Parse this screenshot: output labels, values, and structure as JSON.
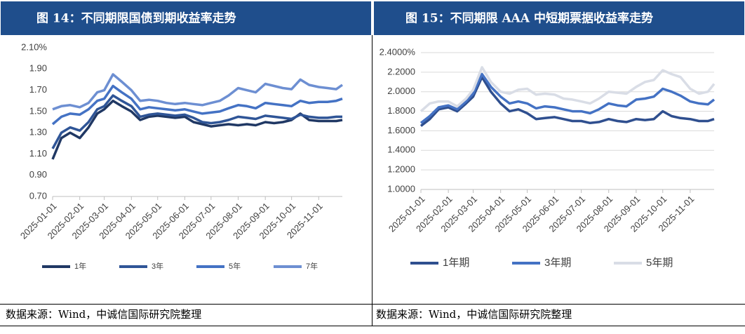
{
  "chart_data": [
    {
      "type": "line",
      "title": "图 14：不同期限国债到期收益率走势",
      "source": "数据来源：Wind，中诚信国际研究院整理",
      "x": [
        "2025-01-01",
        "2025-01-11",
        "2025-01-21",
        "2025-02-01",
        "2025-02-11",
        "2025-02-21",
        "2025-03-01",
        "2025-03-11",
        "2025-03-21",
        "2025-04-01",
        "2025-04-11",
        "2025-04-21",
        "2025-05-01",
        "2025-05-11",
        "2025-05-21",
        "2025-06-01",
        "2025-06-11",
        "2025-06-21",
        "2025-07-01",
        "2025-07-11",
        "2025-07-21",
        "2025-08-01",
        "2025-08-11",
        "2025-08-21",
        "2025-09-01",
        "2025-09-11",
        "2025-09-21",
        "2025-10-01",
        "2025-10-11",
        "2025-10-21",
        "2025-11-01",
        "2025-11-11",
        "2025-11-21",
        "2025-11-28"
      ],
      "xlim": [
        "2025-01-01",
        "2025-11-28"
      ],
      "xticks": [
        "2025-01-01",
        "2025-02-01",
        "2025-03-01",
        "2025-04-01",
        "2025-05-01",
        "2025-06-01",
        "2025-07-01",
        "2025-08-01",
        "2025-09-01",
        "2025-10-01",
        "2025-11-01"
      ],
      "ylim": [
        0.7,
        2.1
      ],
      "yticks": [
        {
          "value": 0.7,
          "label": "0.70"
        },
        {
          "value": 0.9,
          "label": "0.90"
        },
        {
          "value": 1.1,
          "label": "1.10"
        },
        {
          "value": 1.3,
          "label": "1.30"
        },
        {
          "value": 1.5,
          "label": "1.50"
        },
        {
          "value": 1.7,
          "label": "1.70"
        },
        {
          "value": 1.9,
          "label": "1.90"
        },
        {
          "value": 2.1,
          "label": "2.10%"
        }
      ],
      "grid": false,
      "legend": "bottom",
      "series": [
        {
          "name": "1年",
          "color": "#203864",
          "values": [
            1.05,
            1.25,
            1.3,
            1.25,
            1.35,
            1.48,
            1.52,
            1.6,
            1.55,
            1.5,
            1.42,
            1.45,
            1.46,
            1.45,
            1.44,
            1.45,
            1.4,
            1.38,
            1.36,
            1.37,
            1.38,
            1.37,
            1.38,
            1.37,
            1.4,
            1.39,
            1.4,
            1.42,
            1.48,
            1.42,
            1.41,
            1.41,
            1.41,
            1.42
          ]
        },
        {
          "name": "3年",
          "color": "#2f5597",
          "values": [
            1.15,
            1.3,
            1.35,
            1.32,
            1.4,
            1.52,
            1.55,
            1.65,
            1.6,
            1.55,
            1.45,
            1.47,
            1.48,
            1.47,
            1.46,
            1.47,
            1.44,
            1.4,
            1.39,
            1.4,
            1.42,
            1.45,
            1.44,
            1.43,
            1.46,
            1.45,
            1.44,
            1.43,
            1.47,
            1.45,
            1.44,
            1.44,
            1.45,
            1.45
          ]
        },
        {
          "name": "5年",
          "color": "#4472c4",
          "values": [
            1.38,
            1.45,
            1.48,
            1.47,
            1.52,
            1.6,
            1.62,
            1.74,
            1.68,
            1.62,
            1.52,
            1.54,
            1.53,
            1.52,
            1.51,
            1.52,
            1.5,
            1.48,
            1.49,
            1.5,
            1.53,
            1.56,
            1.55,
            1.53,
            1.58,
            1.57,
            1.56,
            1.55,
            1.6,
            1.58,
            1.59,
            1.59,
            1.6,
            1.62
          ]
        },
        {
          "name": "7年",
          "color": "#6d8fd2",
          "values": [
            1.52,
            1.55,
            1.56,
            1.54,
            1.58,
            1.68,
            1.7,
            1.85,
            1.78,
            1.7,
            1.6,
            1.61,
            1.6,
            1.58,
            1.57,
            1.58,
            1.57,
            1.56,
            1.58,
            1.6,
            1.65,
            1.72,
            1.7,
            1.68,
            1.76,
            1.74,
            1.72,
            1.71,
            1.8,
            1.75,
            1.73,
            1.72,
            1.71,
            1.75
          ]
        }
      ]
    },
    {
      "type": "line",
      "title": "图 15：不同期限 AAA 中短期票据收益率走势",
      "source": "数据来源：Wind，中诚信国际研究院整理",
      "x": [
        "2025-01-01",
        "2025-01-11",
        "2025-01-21",
        "2025-02-01",
        "2025-02-11",
        "2025-02-21",
        "2025-03-01",
        "2025-03-11",
        "2025-03-21",
        "2025-04-01",
        "2025-04-11",
        "2025-04-21",
        "2025-05-01",
        "2025-05-11",
        "2025-05-21",
        "2025-06-01",
        "2025-06-11",
        "2025-06-21",
        "2025-07-01",
        "2025-07-11",
        "2025-07-21",
        "2025-08-01",
        "2025-08-11",
        "2025-08-21",
        "2025-09-01",
        "2025-09-11",
        "2025-09-21",
        "2025-10-01",
        "2025-10-11",
        "2025-10-21",
        "2025-11-01",
        "2025-11-11",
        "2025-11-21",
        "2025-11-28"
      ],
      "xlim": [
        "2025-01-01",
        "2025-11-28"
      ],
      "xticks": [
        "2025-01-01",
        "2025-02-01",
        "2025-03-01",
        "2025-04-01",
        "2025-05-01",
        "2025-06-01",
        "2025-07-01",
        "2025-08-01",
        "2025-09-01",
        "2025-10-01",
        "2025-11-01"
      ],
      "ylim": [
        1.0,
        2.4
      ],
      "yticks": [
        {
          "value": 1.0,
          "label": "1.0000"
        },
        {
          "value": 1.2,
          "label": "1.2000"
        },
        {
          "value": 1.4,
          "label": "1.4000"
        },
        {
          "value": 1.6,
          "label": "1.6000"
        },
        {
          "value": 1.8,
          "label": "1.8000"
        },
        {
          "value": 2.0,
          "label": "2.0000"
        },
        {
          "value": 2.2,
          "label": "2.2000"
        },
        {
          "value": 2.4,
          "label": "2.4000%"
        }
      ],
      "grid": true,
      "legend": "bottom",
      "series": [
        {
          "name": "1年期",
          "color": "#2f4f8f",
          "values": [
            1.65,
            1.72,
            1.82,
            1.84,
            1.8,
            1.88,
            1.95,
            2.15,
            2.0,
            1.88,
            1.8,
            1.82,
            1.78,
            1.72,
            1.73,
            1.74,
            1.72,
            1.7,
            1.7,
            1.68,
            1.69,
            1.72,
            1.7,
            1.69,
            1.72,
            1.71,
            1.72,
            1.8,
            1.75,
            1.73,
            1.72,
            1.7,
            1.7,
            1.72
          ]
        },
        {
          "name": "3年期",
          "color": "#4472c4",
          "values": [
            1.68,
            1.75,
            1.84,
            1.86,
            1.82,
            1.9,
            1.98,
            2.18,
            2.05,
            1.95,
            1.88,
            1.9,
            1.88,
            1.83,
            1.85,
            1.84,
            1.82,
            1.8,
            1.8,
            1.78,
            1.82,
            1.88,
            1.86,
            1.85,
            1.92,
            1.93,
            1.95,
            2.03,
            2.0,
            1.96,
            1.9,
            1.88,
            1.87,
            1.92
          ]
        },
        {
          "name": "5年期",
          "color": "#d9dde6",
          "values": [
            1.8,
            1.88,
            1.9,
            1.9,
            1.85,
            1.93,
            2.02,
            2.25,
            2.1,
            2.0,
            1.98,
            2.02,
            2.03,
            1.97,
            1.98,
            1.97,
            1.93,
            1.92,
            1.9,
            1.88,
            1.93,
            2.0,
            1.99,
            1.98,
            2.05,
            2.1,
            2.12,
            2.22,
            2.18,
            2.15,
            2.03,
            1.98,
            2.0,
            2.08
          ]
        }
      ]
    }
  ]
}
